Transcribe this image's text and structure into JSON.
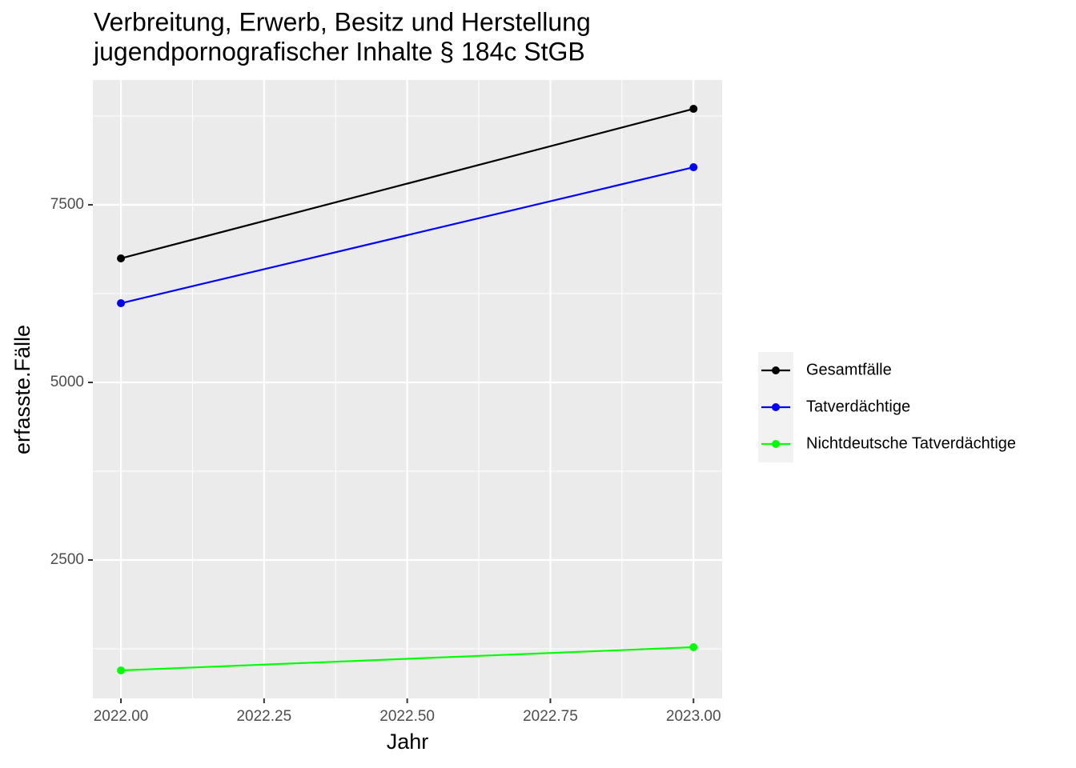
{
  "chart_data": {
    "type": "line",
    "title": [
      "Verbreitung, Erwerb, Besitz und Herstellung",
      "jugendpornografischer Inhalte § 184c StGB"
    ],
    "x_label": "Jahr",
    "y_label": "erfasste.Fälle",
    "x": [
      2022,
      2023
    ],
    "series": [
      {
        "name": "Gesamtfälle",
        "color": "#000000",
        "values": [
          6746,
          8851
        ]
      },
      {
        "name": "Tatverdächtige",
        "color": "#0000ff",
        "values": [
          6115,
          8029
        ]
      },
      {
        "name": "Nichtdeutsche Tatverdächtige",
        "color": "#00ff00",
        "values": [
          946,
          1273
        ]
      }
    ],
    "xlim": [
      2021.951,
      2023.05
    ],
    "xticks": [
      {
        "value": 2022,
        "label": "2022.00"
      },
      {
        "value": 2022.25,
        "label": "2022.25"
      },
      {
        "value": 2022.5,
        "label": "2022.50"
      },
      {
        "value": 2022.75,
        "label": "2022.75"
      },
      {
        "value": 2023,
        "label": "2023.00"
      }
    ],
    "x_minor_ticks": [
      2022.125,
      2022.375,
      2022.625,
      2022.875
    ],
    "ylim": [
      552,
      9257
    ],
    "yticks": [
      2500,
      5000,
      7500
    ],
    "y_minor_ticks": [
      1250,
      3750,
      6250,
      8750
    ],
    "grid": true,
    "legend": "right"
  }
}
